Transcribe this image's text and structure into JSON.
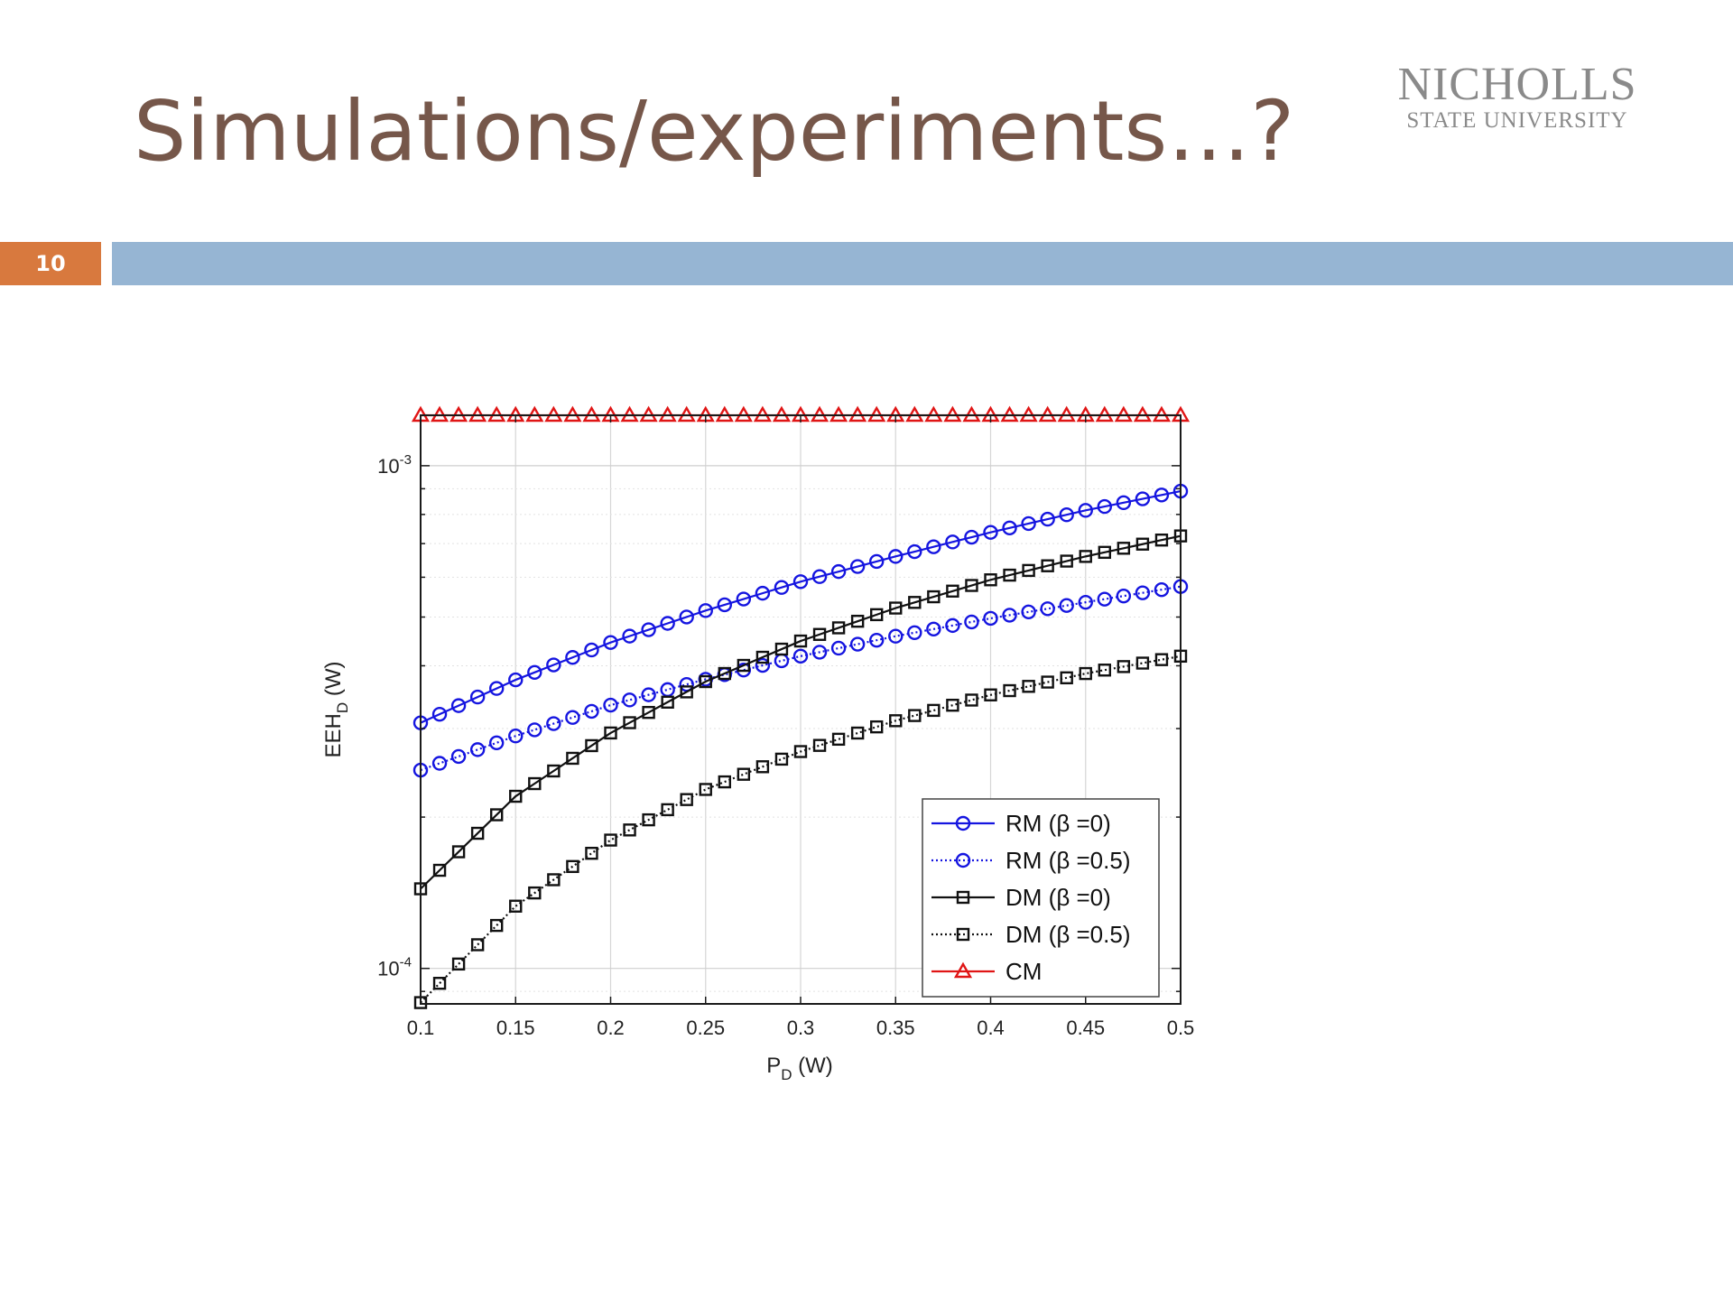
{
  "slide": {
    "title": "Simulations/experiments…?",
    "number": "10",
    "logo": {
      "name": "NICHOLLS",
      "subtitle": "STATE UNIVERSITY"
    },
    "colors": {
      "title": "#76574a",
      "number_box": "#d8793e",
      "header_bar": "#96b5d3",
      "logo": "#8a8a8a"
    }
  },
  "chart_data": {
    "type": "line",
    "title": "",
    "xlabel": {
      "base": "P",
      "sub": "D",
      "unit": " (W)"
    },
    "ylabel": {
      "base": "EEH",
      "sub": "D",
      "unit": " (W)"
    },
    "xlim": [
      0.1,
      0.5
    ],
    "ylim": [
      8.5e-05,
      0.00126
    ],
    "yscale": "log",
    "grid": true,
    "legend_position": "bottom-right",
    "x_ticks": [
      "0.1",
      "0.15",
      "0.2",
      "0.25",
      "0.3",
      "0.35",
      "0.4",
      "0.45",
      "0.5"
    ],
    "y_ticks": [
      {
        "base": "10",
        "exp": "-3",
        "value": 0.001
      },
      {
        "base": "10",
        "exp": "-4",
        "value": 0.0001
      }
    ],
    "x": [
      0.1,
      0.15,
      0.2,
      0.25,
      0.3,
      0.35,
      0.4,
      0.45,
      0.5
    ],
    "series": [
      {
        "name": "RM (β =0)",
        "color": "#1515e0",
        "line": "solid",
        "marker": "circle",
        "values": [
          0.000308,
          0.000375,
          0.000445,
          0.000515,
          0.000588,
          0.00066,
          0.000737,
          0.000815,
          0.00089
        ]
      },
      {
        "name": "RM (β =0.5)",
        "color": "#1515e0",
        "line": "dotted",
        "marker": "circle",
        "values": [
          0.000248,
          0.00029,
          0.000334,
          0.000376,
          0.000418,
          0.000458,
          0.000497,
          0.000535,
          0.000575
        ]
      },
      {
        "name": "DM (β =0)",
        "color": "#111111",
        "line": "solid",
        "marker": "square",
        "values": [
          0.000144,
          0.00022,
          0.000294,
          0.000372,
          0.000448,
          0.000521,
          0.000593,
          0.00066,
          0.000725
        ]
      },
      {
        "name": "DM (β =0.5)",
        "color": "#111111",
        "line": "dotted",
        "marker": "square",
        "values": [
          8.55e-05,
          0.000133,
          0.00018,
          0.000227,
          0.00027,
          0.000311,
          0.00035,
          0.000386,
          0.000418
        ]
      },
      {
        "name": "CM",
        "color": "#e01515",
        "line": "solid",
        "marker": "triangle",
        "values": [
          0.00126,
          0.00126,
          0.00126,
          0.00126,
          0.00126,
          0.00126,
          0.00126,
          0.00126,
          0.00126
        ]
      }
    ]
  }
}
